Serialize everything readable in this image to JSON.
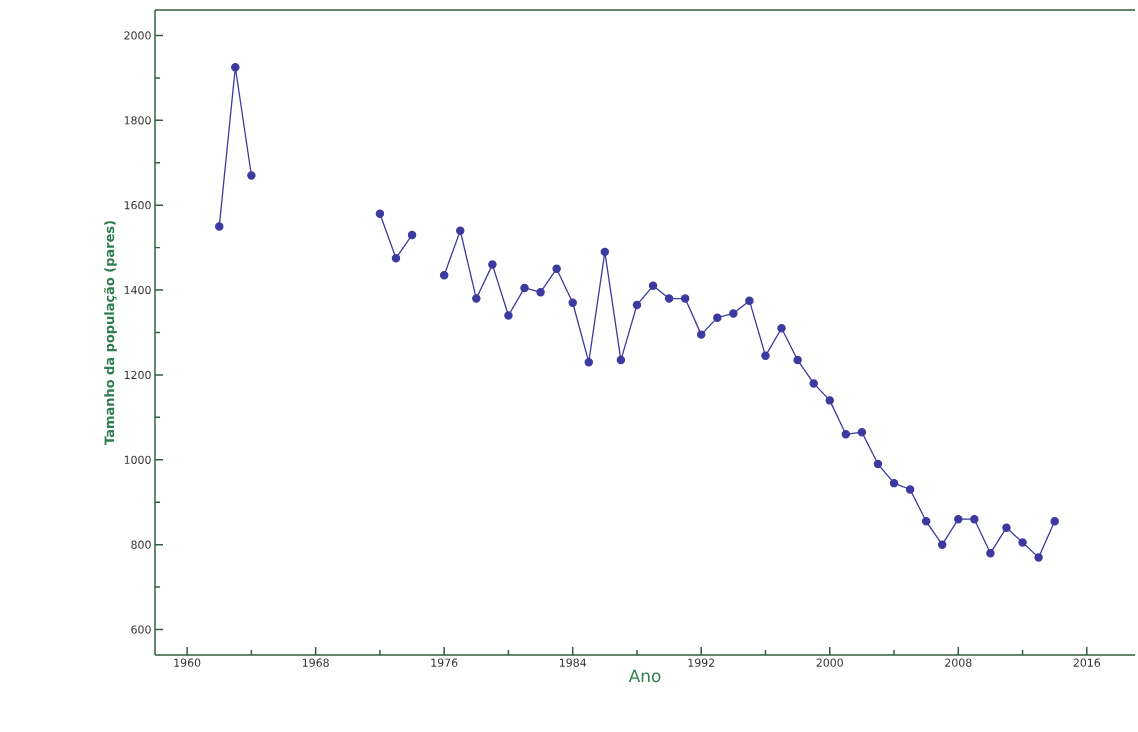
{
  "chart_data": {
    "type": "line",
    "xlabel": "Ano",
    "ylabel": "Tamanho da população (pares)",
    "x": [
      1962,
      1963,
      1964,
      1965,
      1972,
      1973,
      1974,
      1975,
      1976,
      1977,
      1978,
      1979,
      1980,
      1981,
      1982,
      1983,
      1984,
      1985,
      1986,
      1987,
      1988,
      1989,
      1990,
      1991,
      1992,
      1993,
      1994,
      1995,
      1996,
      1997,
      1998,
      1999,
      2000,
      2001,
      2002,
      2003,
      2004,
      2005,
      2006,
      2007,
      2008,
      2009,
      2010,
      2011,
      2012,
      2013,
      2014
    ],
    "series": [
      {
        "color": "#3a3aa0",
        "values": [
          1550,
          1925,
          1670,
          null,
          1580,
          1475,
          1530,
          null,
          1435,
          1540,
          1380,
          1460,
          1340,
          1405,
          1395,
          1450,
          1370,
          1230,
          1490,
          1235,
          1365,
          1410,
          1380,
          1380,
          1295,
          1335,
          1345,
          1375,
          1245,
          1310,
          1235,
          1180,
          1140,
          1060,
          1065,
          990,
          945,
          930,
          855,
          800,
          860,
          860,
          780,
          840,
          805,
          770,
          855
        ]
      }
    ],
    "xlim": [
      1958,
      2019
    ],
    "ylim": [
      540,
      2060
    ],
    "xticks": [
      1960,
      1968,
      1976,
      1984,
      1992,
      2000,
      2008,
      2016
    ],
    "yticks": [
      600,
      800,
      1000,
      1200,
      1400,
      1600,
      1800,
      2000
    ],
    "marker": "circle",
    "line_style": "solid",
    "grid": false
  }
}
